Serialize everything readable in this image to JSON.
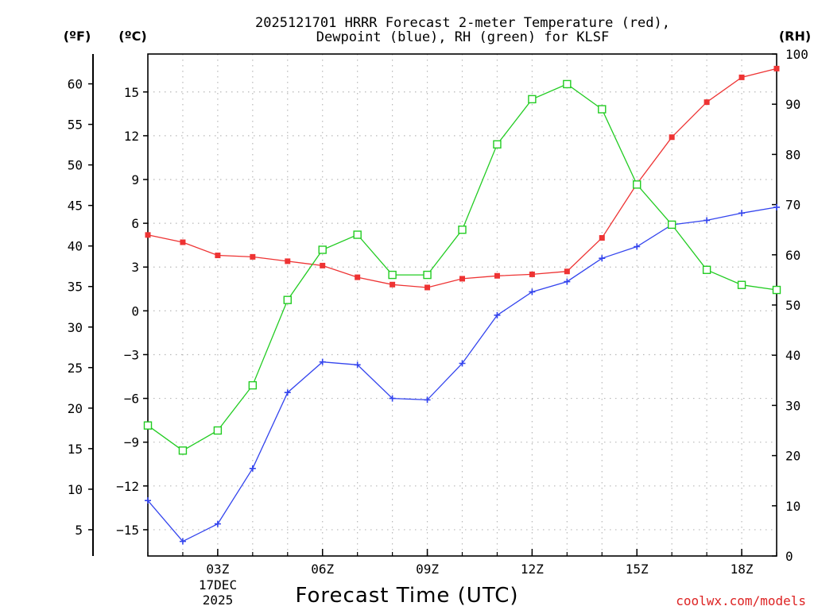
{
  "chart_data": {
    "type": "line",
    "title_line1": "2025121701 HRRR Forecast 2-meter Temperature (red),",
    "title_line2": "Dewpoint (blue), RH (green) for KLSF",
    "xlabel": "Forecast Time (UTC)",
    "date_label_line1": "17DEC",
    "date_label_line2": "2025",
    "credit": "coolwx.com/models",
    "unit_left_f": "(ºF)",
    "unit_left_c": "(ºC)",
    "unit_right_rh": "(RH)",
    "x_hours": [
      1,
      2,
      3,
      4,
      5,
      6,
      7,
      8,
      9,
      10,
      11,
      12,
      13,
      14,
      15,
      16,
      17,
      18,
      19
    ],
    "x_ticks": [
      {
        "hour": 3,
        "label": "03Z"
      },
      {
        "hour": 6,
        "label": "06Z"
      },
      {
        "hour": 9,
        "label": "09Z"
      },
      {
        "hour": 12,
        "label": "12Z"
      },
      {
        "hour": 15,
        "label": "15Z"
      },
      {
        "hour": 18,
        "label": "18Z"
      }
    ],
    "xlim": [
      1,
      19
    ],
    "ylim_c": [
      -16.8,
      17.6
    ],
    "ylim_rh": [
      0,
      100
    ],
    "y_ticks_c": [
      15,
      12,
      9,
      6,
      3,
      0,
      -3,
      -6,
      -9,
      -12,
      -15
    ],
    "y_ticks_c_labels": [
      "15",
      "12",
      "9",
      "6",
      "3",
      "0",
      "−3",
      "−6",
      "−9",
      "−12",
      "−15"
    ],
    "y_ticks_f": [
      60,
      55,
      50,
      45,
      40,
      35,
      30,
      25,
      20,
      15,
      10,
      5
    ],
    "y_ticks_rh": [
      100,
      90,
      80,
      70,
      60,
      50,
      40,
      30,
      20,
      10,
      0
    ],
    "series": [
      {
        "name": "Temperature",
        "unit": "C",
        "color": "#ee3333",
        "marker": "filled-square",
        "values": [
          5.2,
          4.7,
          3.8,
          3.7,
          3.4,
          3.1,
          2.3,
          1.8,
          1.6,
          2.2,
          2.4,
          2.5,
          2.7,
          5.0,
          8.7,
          11.9,
          14.3,
          16.0,
          16.6
        ]
      },
      {
        "name": "Dewpoint",
        "unit": "C",
        "color": "#3344ee",
        "marker": "plus",
        "values": [
          -13.0,
          -15.8,
          -14.6,
          -10.8,
          -5.6,
          -3.5,
          -3.7,
          -6.0,
          -6.1,
          -3.6,
          -0.3,
          1.3,
          2.0,
          3.6,
          4.4,
          5.9,
          6.2,
          6.7,
          7.1
        ]
      },
      {
        "name": "RH",
        "unit": "%",
        "color": "#22cc22",
        "marker": "open-square",
        "values": [
          26,
          21,
          25,
          34,
          51,
          61,
          64,
          56,
          56,
          65,
          82,
          91,
          94,
          89,
          74,
          66,
          57,
          54,
          53
        ]
      }
    ]
  }
}
